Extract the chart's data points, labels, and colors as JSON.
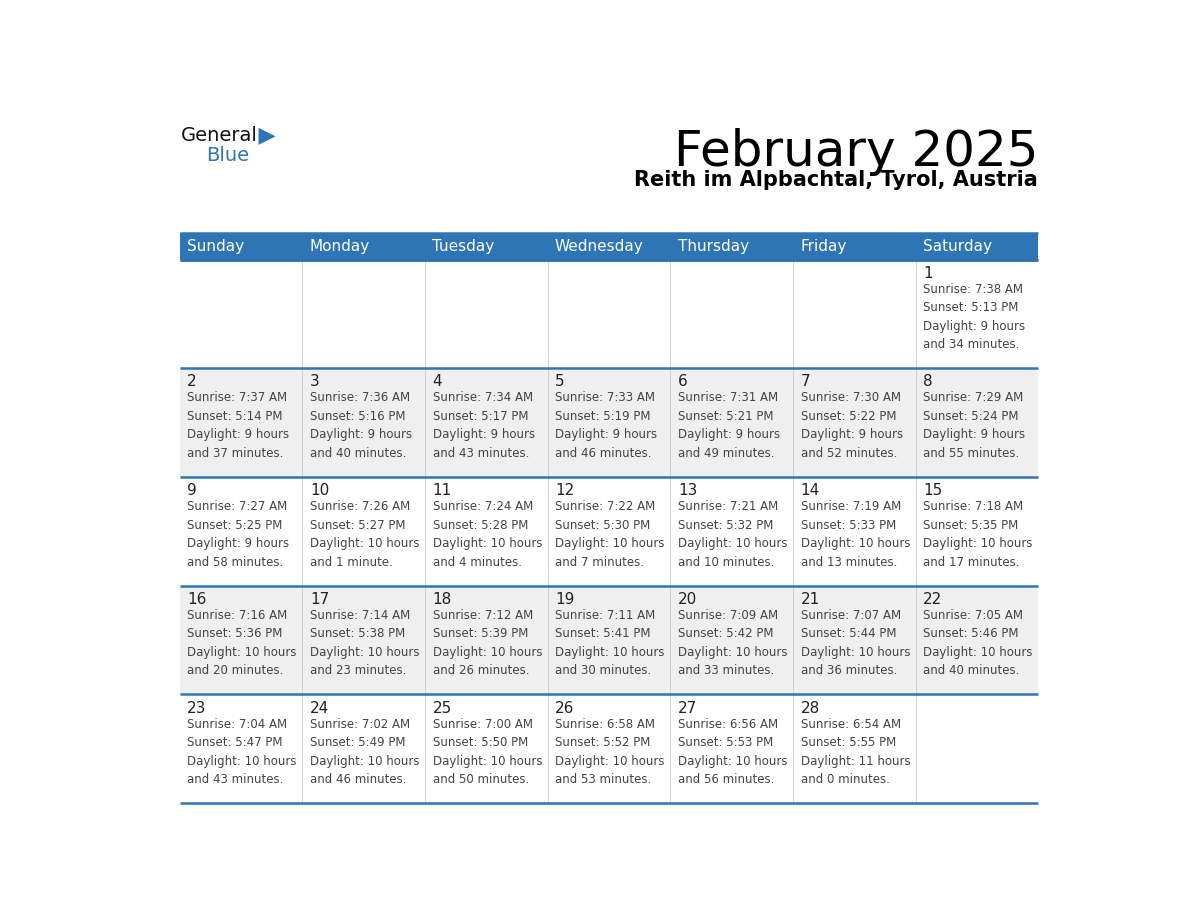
{
  "title": "February 2025",
  "subtitle": "Reith im Alpbachtal, Tyrol, Austria",
  "header_color": "#2e75b6",
  "header_text_color": "#ffffff",
  "cell_bg_white": "#ffffff",
  "cell_bg_gray": "#efefef",
  "day_number_color": "#222222",
  "text_color": "#444444",
  "line_color": "#2e75b6",
  "separator_color": "#c0c0c0",
  "days_of_week": [
    "Sunday",
    "Monday",
    "Tuesday",
    "Wednesday",
    "Thursday",
    "Friday",
    "Saturday"
  ],
  "week_bg": [
    "white",
    "gray",
    "white",
    "gray",
    "white"
  ],
  "weeks": [
    [
      {
        "day": null,
        "info": null
      },
      {
        "day": null,
        "info": null
      },
      {
        "day": null,
        "info": null
      },
      {
        "day": null,
        "info": null
      },
      {
        "day": null,
        "info": null
      },
      {
        "day": null,
        "info": null
      },
      {
        "day": 1,
        "info": "Sunrise: 7:38 AM\nSunset: 5:13 PM\nDaylight: 9 hours\nand 34 minutes."
      }
    ],
    [
      {
        "day": 2,
        "info": "Sunrise: 7:37 AM\nSunset: 5:14 PM\nDaylight: 9 hours\nand 37 minutes."
      },
      {
        "day": 3,
        "info": "Sunrise: 7:36 AM\nSunset: 5:16 PM\nDaylight: 9 hours\nand 40 minutes."
      },
      {
        "day": 4,
        "info": "Sunrise: 7:34 AM\nSunset: 5:17 PM\nDaylight: 9 hours\nand 43 minutes."
      },
      {
        "day": 5,
        "info": "Sunrise: 7:33 AM\nSunset: 5:19 PM\nDaylight: 9 hours\nand 46 minutes."
      },
      {
        "day": 6,
        "info": "Sunrise: 7:31 AM\nSunset: 5:21 PM\nDaylight: 9 hours\nand 49 minutes."
      },
      {
        "day": 7,
        "info": "Sunrise: 7:30 AM\nSunset: 5:22 PM\nDaylight: 9 hours\nand 52 minutes."
      },
      {
        "day": 8,
        "info": "Sunrise: 7:29 AM\nSunset: 5:24 PM\nDaylight: 9 hours\nand 55 minutes."
      }
    ],
    [
      {
        "day": 9,
        "info": "Sunrise: 7:27 AM\nSunset: 5:25 PM\nDaylight: 9 hours\nand 58 minutes."
      },
      {
        "day": 10,
        "info": "Sunrise: 7:26 AM\nSunset: 5:27 PM\nDaylight: 10 hours\nand 1 minute."
      },
      {
        "day": 11,
        "info": "Sunrise: 7:24 AM\nSunset: 5:28 PM\nDaylight: 10 hours\nand 4 minutes."
      },
      {
        "day": 12,
        "info": "Sunrise: 7:22 AM\nSunset: 5:30 PM\nDaylight: 10 hours\nand 7 minutes."
      },
      {
        "day": 13,
        "info": "Sunrise: 7:21 AM\nSunset: 5:32 PM\nDaylight: 10 hours\nand 10 minutes."
      },
      {
        "day": 14,
        "info": "Sunrise: 7:19 AM\nSunset: 5:33 PM\nDaylight: 10 hours\nand 13 minutes."
      },
      {
        "day": 15,
        "info": "Sunrise: 7:18 AM\nSunset: 5:35 PM\nDaylight: 10 hours\nand 17 minutes."
      }
    ],
    [
      {
        "day": 16,
        "info": "Sunrise: 7:16 AM\nSunset: 5:36 PM\nDaylight: 10 hours\nand 20 minutes."
      },
      {
        "day": 17,
        "info": "Sunrise: 7:14 AM\nSunset: 5:38 PM\nDaylight: 10 hours\nand 23 minutes."
      },
      {
        "day": 18,
        "info": "Sunrise: 7:12 AM\nSunset: 5:39 PM\nDaylight: 10 hours\nand 26 minutes."
      },
      {
        "day": 19,
        "info": "Sunrise: 7:11 AM\nSunset: 5:41 PM\nDaylight: 10 hours\nand 30 minutes."
      },
      {
        "day": 20,
        "info": "Sunrise: 7:09 AM\nSunset: 5:42 PM\nDaylight: 10 hours\nand 33 minutes."
      },
      {
        "day": 21,
        "info": "Sunrise: 7:07 AM\nSunset: 5:44 PM\nDaylight: 10 hours\nand 36 minutes."
      },
      {
        "day": 22,
        "info": "Sunrise: 7:05 AM\nSunset: 5:46 PM\nDaylight: 10 hours\nand 40 minutes."
      }
    ],
    [
      {
        "day": 23,
        "info": "Sunrise: 7:04 AM\nSunset: 5:47 PM\nDaylight: 10 hours\nand 43 minutes."
      },
      {
        "day": 24,
        "info": "Sunrise: 7:02 AM\nSunset: 5:49 PM\nDaylight: 10 hours\nand 46 minutes."
      },
      {
        "day": 25,
        "info": "Sunrise: 7:00 AM\nSunset: 5:50 PM\nDaylight: 10 hours\nand 50 minutes."
      },
      {
        "day": 26,
        "info": "Sunrise: 6:58 AM\nSunset: 5:52 PM\nDaylight: 10 hours\nand 53 minutes."
      },
      {
        "day": 27,
        "info": "Sunrise: 6:56 AM\nSunset: 5:53 PM\nDaylight: 10 hours\nand 56 minutes."
      },
      {
        "day": 28,
        "info": "Sunrise: 6:54 AM\nSunset: 5:55 PM\nDaylight: 11 hours\nand 0 minutes."
      },
      {
        "day": null,
        "info": null
      }
    ]
  ],
  "logo_text_general": "General",
  "logo_text_blue": "Blue",
  "logo_color_general": "#111111",
  "logo_color_blue": "#2e75b6",
  "logo_triangle_color": "#2e75b6",
  "title_fontsize": 36,
  "subtitle_fontsize": 15,
  "dow_fontsize": 11,
  "day_num_fontsize": 11,
  "info_fontsize": 8.5
}
